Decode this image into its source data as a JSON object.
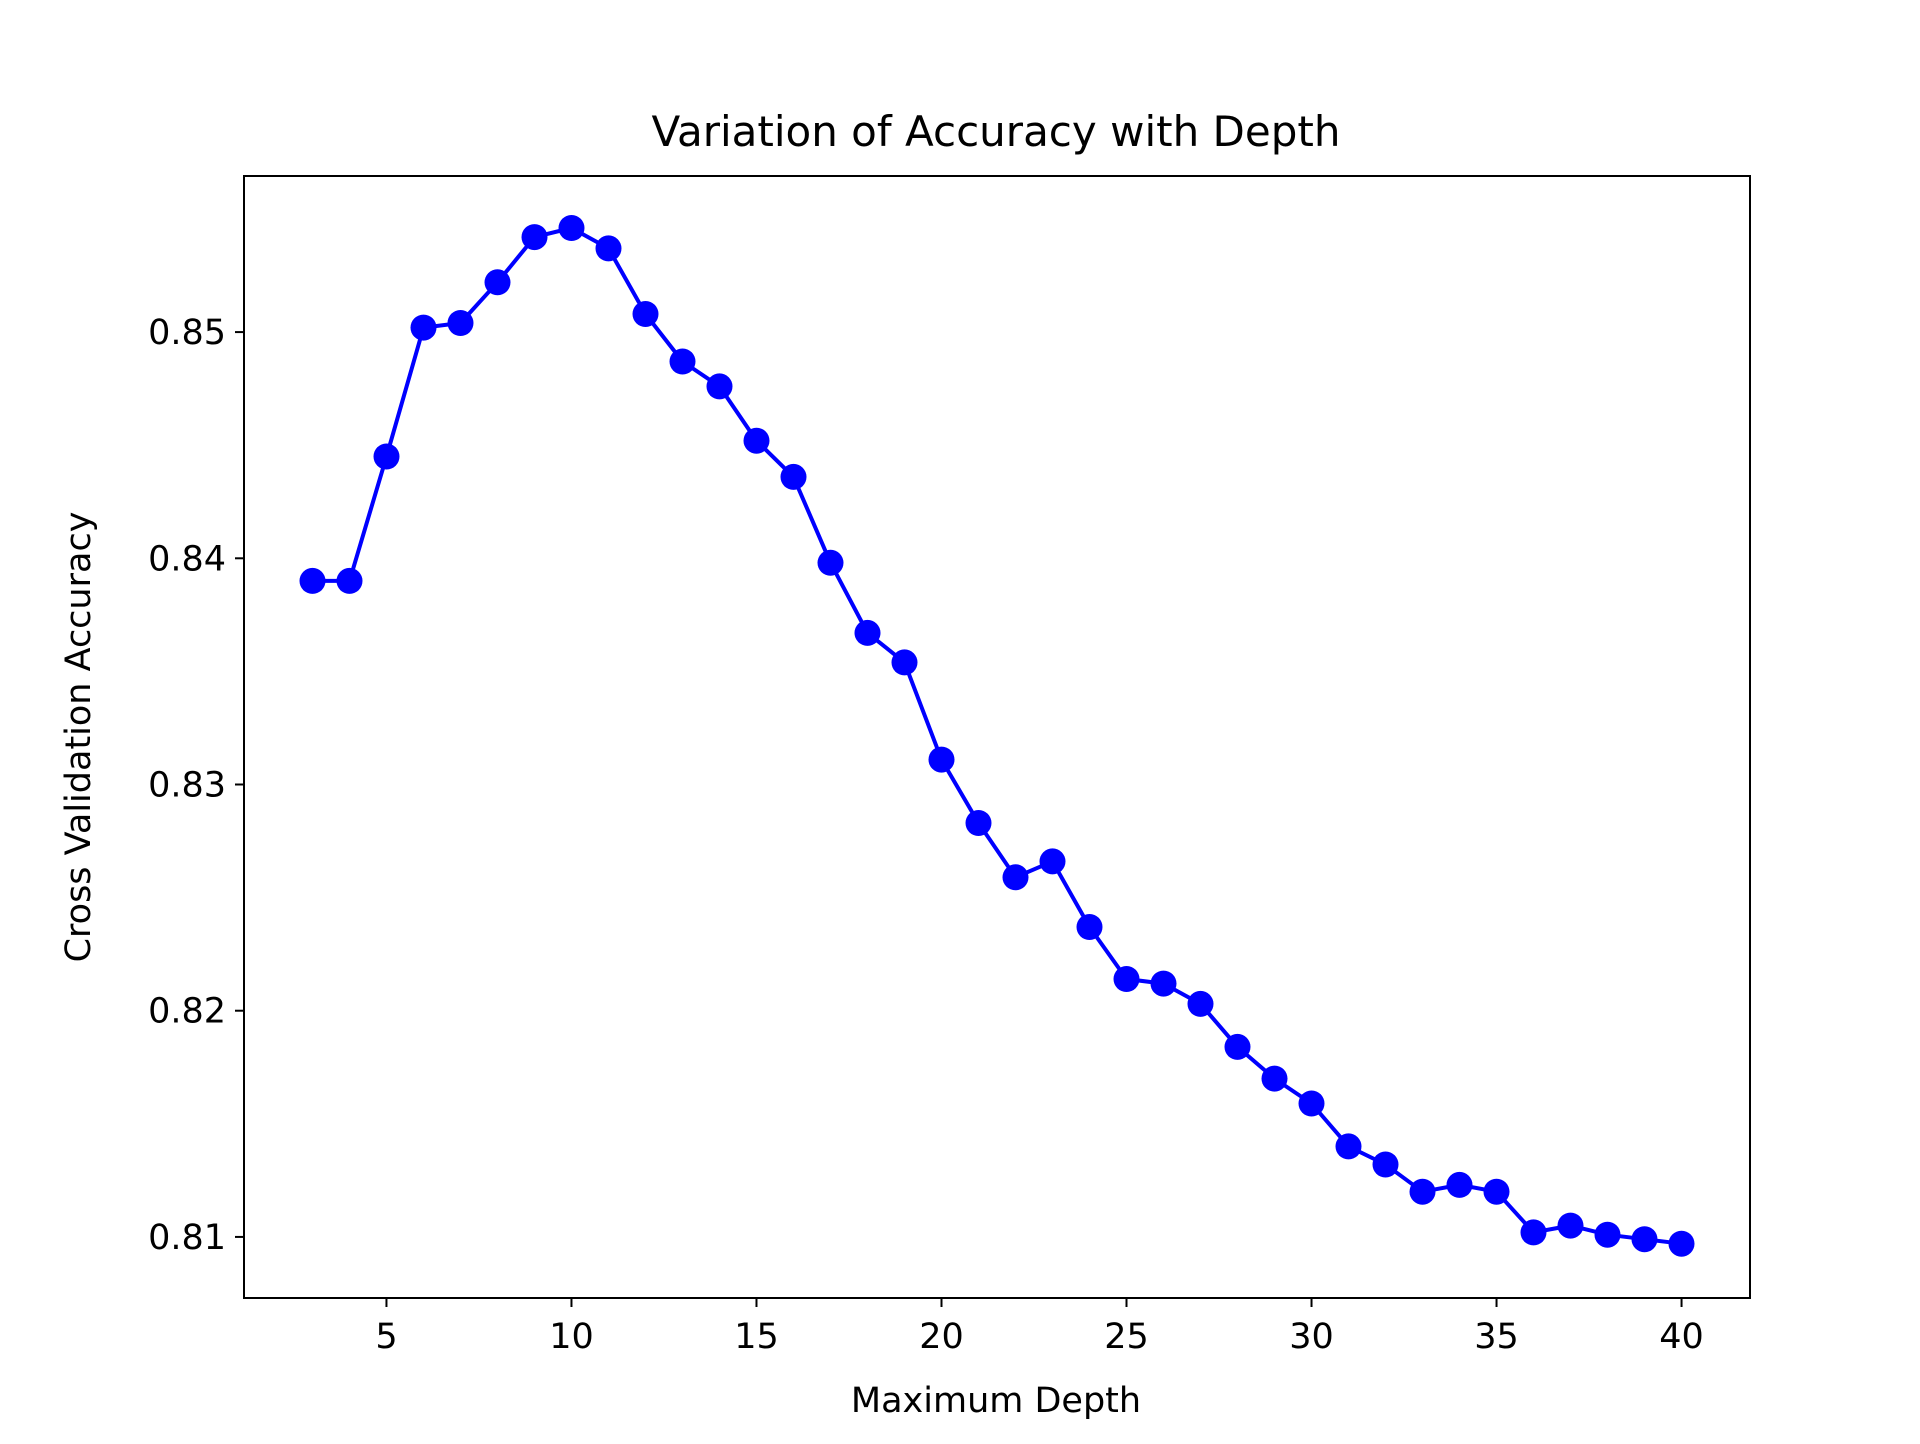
{
  "chart_data": {
    "type": "line",
    "title": "Variation of Accuracy with Depth",
    "xlabel": "Maximum Depth",
    "ylabel": "Cross Validation Accuracy",
    "xlim": [
      1.15,
      41.85
    ],
    "ylim": [
      0.8073,
      0.8569
    ],
    "xticks": [
      5,
      10,
      15,
      20,
      25,
      30,
      35,
      40
    ],
    "yticks": [
      0.81,
      0.82,
      0.83,
      0.84,
      0.85
    ],
    "grid": false,
    "series": [
      {
        "color": "#0000ff",
        "marker": "circle",
        "x": [
          3,
          4,
          5,
          6,
          7,
          8,
          9,
          10,
          11,
          12,
          13,
          14,
          15,
          16,
          17,
          18,
          19,
          20,
          21,
          22,
          23,
          24,
          25,
          26,
          27,
          28,
          29,
          30,
          31,
          32,
          33,
          34,
          35,
          36,
          37,
          38,
          39,
          40
        ],
        "y": [
          0.839,
          0.839,
          0.8445,
          0.8502,
          0.8504,
          0.8522,
          0.8542,
          0.8546,
          0.8537,
          0.8508,
          0.8487,
          0.8476,
          0.8452,
          0.8436,
          0.8398,
          0.8367,
          0.8354,
          0.8311,
          0.8283,
          0.8259,
          0.8266,
          0.8237,
          0.8214,
          0.8212,
          0.8203,
          0.8184,
          0.817,
          0.8159,
          0.814,
          0.8132,
          0.812,
          0.8123,
          0.812,
          0.8102,
          0.8105,
          0.8101,
          0.8099,
          0.8097
        ]
      }
    ]
  }
}
